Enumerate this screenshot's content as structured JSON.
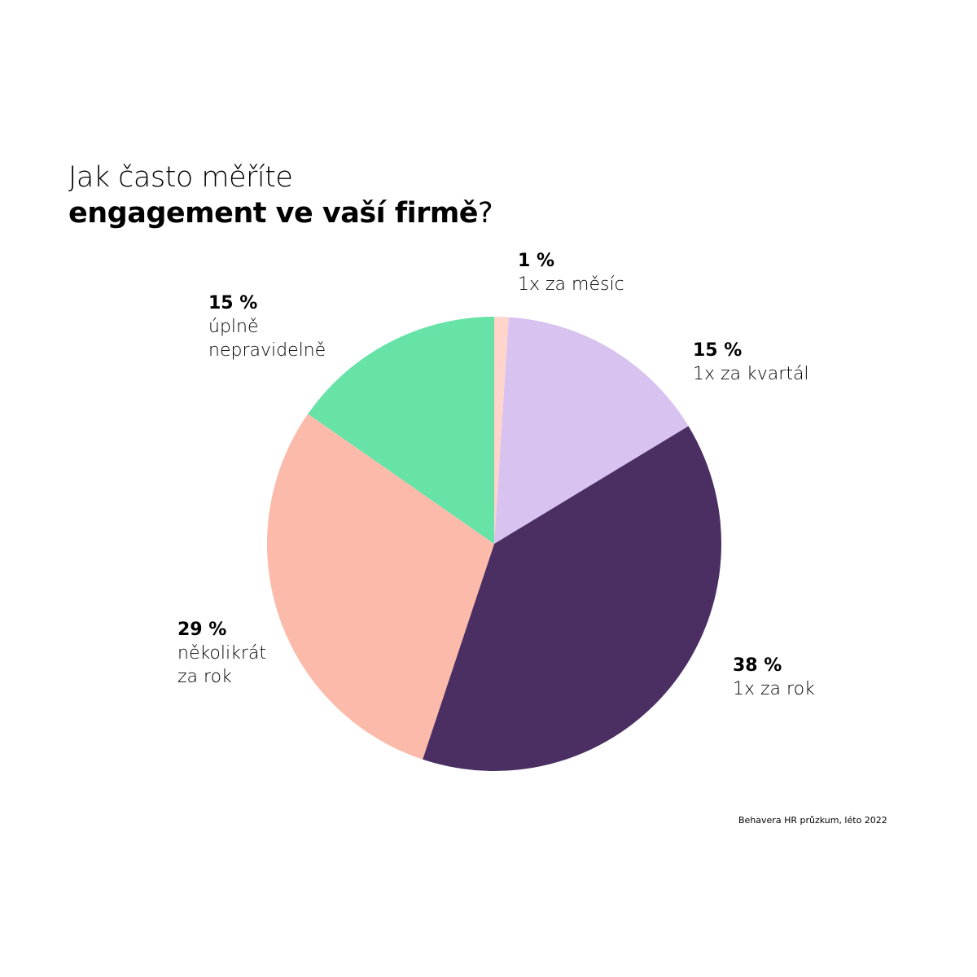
{
  "chart_data": {
    "type": "pie",
    "title_line1": "Jak často měříte",
    "title_line2_bold": "engagement ve vaší firmě",
    "title_line2_end": "?",
    "slices": [
      {
        "label": "1x za měsíc",
        "value": 1,
        "value_label": "1 %",
        "color": "#FFD5CB"
      },
      {
        "label": "1x za kvartál",
        "value": 15,
        "value_label": "15 %",
        "color": "#D8C2F0"
      },
      {
        "label": "1x za rok",
        "value": 38,
        "value_label": "38 %",
        "color": "#4B2F63"
      },
      {
        "label": "několikrát\nza rok",
        "value": 29,
        "value_label": "29 %",
        "color": "#FCBBAA"
      },
      {
        "label": "úplně\nnepravidelně",
        "value": 15,
        "value_label": "15 %",
        "color": "#68E3A8"
      }
    ],
    "start": "top",
    "direction": "clockwise",
    "source": "Behavera HR průzkum, léto 2022"
  }
}
